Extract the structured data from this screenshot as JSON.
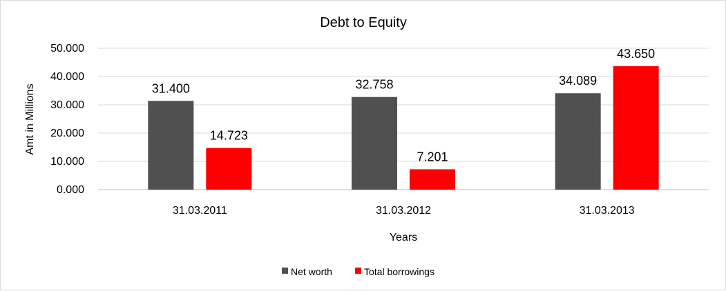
{
  "chart_data": {
    "type": "bar",
    "title": "Debt to Equity",
    "xlabel": "Years",
    "ylabel": "Amt in Millions",
    "categories": [
      "31.03.2011",
      "31.03.2012",
      "31.03.2013"
    ],
    "series": [
      {
        "name": "Net worth",
        "values": [
          31.4,
          32.758,
          34.089
        ],
        "labels": [
          "31.400",
          "32.758",
          "34.089"
        ],
        "color": "#505050"
      },
      {
        "name": "Total borrowings",
        "values": [
          14.723,
          7.201,
          43.65
        ],
        "labels": [
          "14.723",
          "7.201",
          "43.650"
        ],
        "color": "#ff0000"
      }
    ],
    "ylim": [
      0,
      50
    ],
    "yticks": [
      0,
      10,
      20,
      30,
      40,
      50
    ],
    "ytick_labels": [
      "0.000",
      "10.000",
      "20.000",
      "30.000",
      "40.000",
      "50.000"
    ],
    "grid": true,
    "legend": "bottom"
  }
}
